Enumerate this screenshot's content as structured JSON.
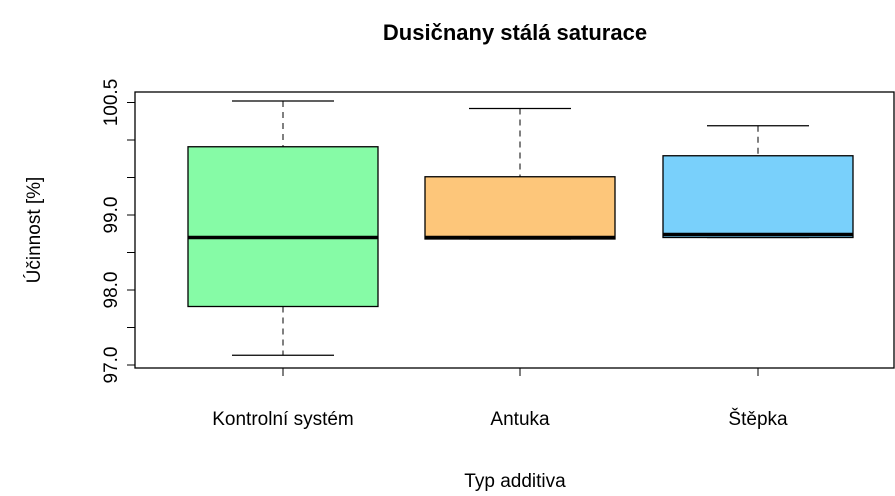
{
  "chart_data": {
    "type": "boxplot",
    "title": "Dusičnany stálá saturace",
    "xlabel": "Typ additiva",
    "ylabel": "Účinnost [%]",
    "categories": [
      "Kontrolní systém",
      "Antuka",
      "Štěpka"
    ],
    "colors": [
      "#86fba6",
      "#fdc67a",
      "#79d0fb"
    ],
    "min": [
      97.13,
      98.68,
      98.7
    ],
    "q1": [
      97.78,
      98.68,
      98.7
    ],
    "median": [
      98.7,
      98.7,
      98.74
    ],
    "q3": [
      99.91,
      99.51,
      99.79
    ],
    "max": [
      100.52,
      100.42,
      100.19
    ],
    "ylim": [
      96.96,
      100.64
    ],
    "yticks": [
      {
        "value": 97,
        "label": "97.0"
      },
      {
        "value": 97.5,
        "label": null
      },
      {
        "value": 98,
        "label": "98.0"
      },
      {
        "value": 98.5,
        "label": null
      },
      {
        "value": 99,
        "label": "99.0"
      },
      {
        "value": 99.5,
        "label": null
      },
      {
        "value": 100,
        "label": null
      },
      100.5
    ]
  }
}
